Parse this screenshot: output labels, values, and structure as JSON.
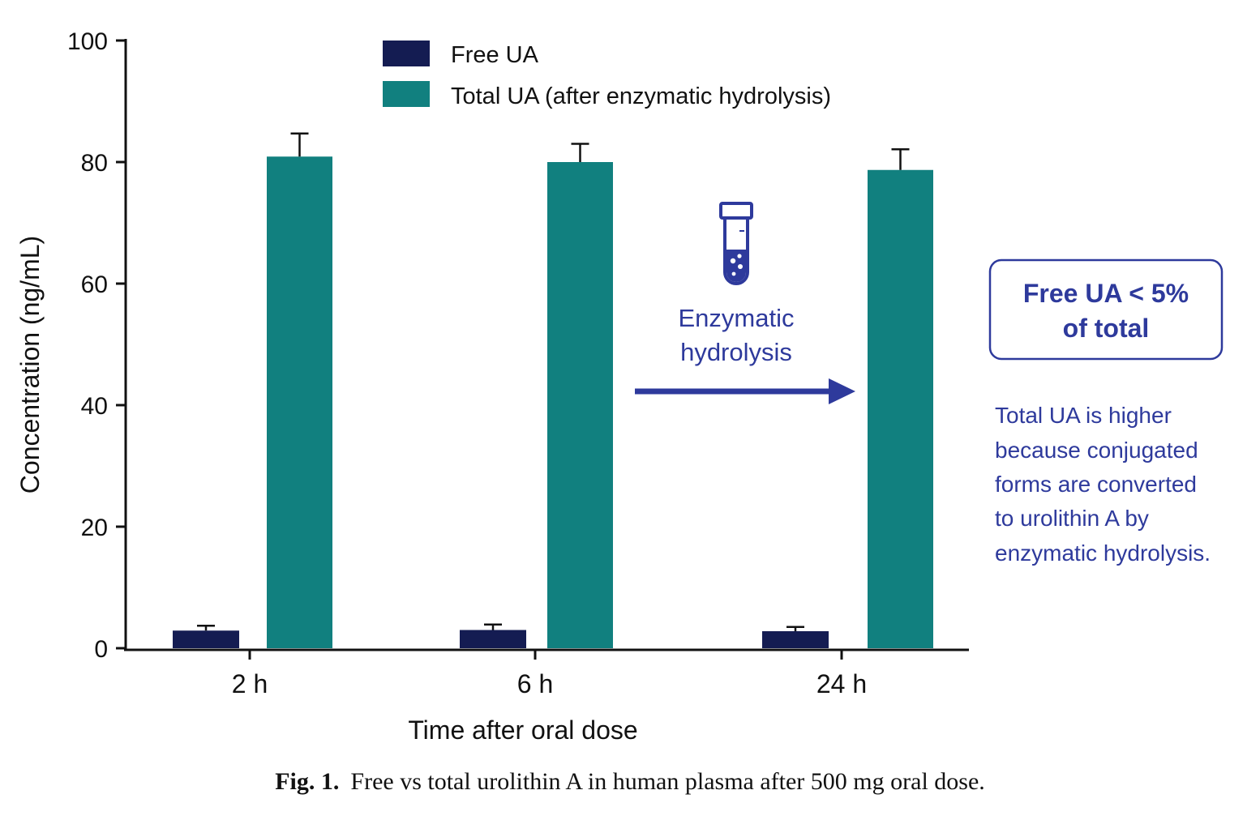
{
  "chart_data": {
    "type": "bar",
    "categories": [
      "2 h",
      "6 h",
      "24 h"
    ],
    "series": [
      {
        "name": "Free UA",
        "values": [
          2.9,
          3.0,
          2.8
        ],
        "errors": [
          0.8,
          0.9,
          0.7
        ],
        "color": "#141c52"
      },
      {
        "name": "Total UA (after enzymatic hydrolysis)",
        "values": [
          80.9,
          80.0,
          78.7
        ],
        "errors": [
          3.8,
          3.0,
          3.4
        ],
        "color": "#11807f"
      }
    ],
    "xlabel": "Time after oral dose",
    "ylabel": "Concentration (ng/mL)",
    "ylim": [
      0,
      100
    ],
    "yticks": [
      0,
      20,
      40,
      60,
      80,
      100
    ],
    "grid": false,
    "legend_position": "top-center"
  },
  "annotations": {
    "process_line1": "Enzymatic",
    "process_line2": "hydrolysis",
    "badge_line1": "Free UA < 5%",
    "badge_line2": "of total",
    "note_lines": [
      "Total UA is higher",
      "because conjugated",
      "forms are converted",
      "to urolithin A by",
      "enzymatic hydrolysis."
    ],
    "accent_color": "#2e3a9c"
  },
  "caption": {
    "label": "Fig. 1.",
    "text": "Free vs total urolithin A in human plasma after 500 mg oral dose."
  },
  "icons": {
    "test_tube": "test-tube-icon",
    "arrow": "arrow-right-icon"
  }
}
